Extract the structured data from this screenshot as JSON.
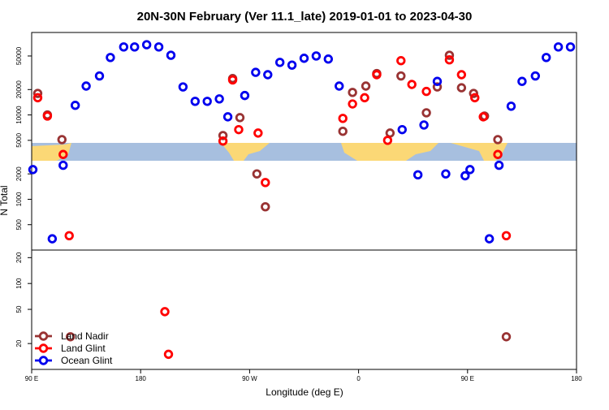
{
  "chart_data": {
    "type": "scatter",
    "title": "20N-30N February (Ver 11.1_late)   2019-01-01 to 2023-04-30",
    "x_label": "Longitude (deg E)",
    "y_label": "N Total",
    "xlim": [
      90,
      540
    ],
    "xticks": [
      {
        "value": 90,
        "label": "90 E"
      },
      180,
      {
        "value": 270,
        "label": "90 W"
      },
      {
        "value": 360,
        "label": "0"
      },
      {
        "value": 450,
        "label": "90 E"
      },
      {
        "value": 540,
        "label": "180"
      }
    ],
    "log_scale": true,
    "panels": [
      {
        "ylim": [
          250,
          95000
        ],
        "yticks": [
          500,
          1000,
          2000,
          5000,
          10000,
          20000,
          50000
        ]
      },
      {
        "ylim": [
          10,
          245
        ],
        "yticks": [
          20,
          50,
          100,
          200
        ]
      }
    ],
    "legend": "bottomleft",
    "series": [
      {
        "name": "Land Nadir",
        "color": "#993333",
        "x": [
          95,
          103,
          115,
          122,
          248,
          256,
          262,
          276,
          283,
          347,
          355,
          366,
          375,
          386,
          395,
          425,
          416,
          435,
          445,
          455,
          464,
          475,
          482
        ],
        "values": [
          18000,
          10000,
          5100,
          24,
          5700,
          27000,
          9300,
          2000,
          815,
          6400,
          18500,
          22000,
          31000,
          6100,
          29000,
          21500,
          10600,
          51000,
          21000,
          18000,
          9700,
          5100,
          24
        ]
      },
      {
        "name": "Land Glint",
        "color": "#ff0000",
        "x": [
          95,
          103,
          116,
          121,
          200,
          203,
          248,
          256,
          261,
          277,
          283,
          347,
          355,
          365,
          375,
          384,
          395,
          404,
          416,
          435,
          445,
          456,
          463,
          475,
          482
        ],
        "values": [
          16000,
          9700,
          3400,
          370,
          47,
          15,
          4900,
          26000,
          6700,
          6100,
          1580,
          9100,
          13500,
          16000,
          30000,
          5000,
          44000,
          23000,
          19000,
          45000,
          30000,
          16000,
          9500,
          3400,
          370
        ]
      },
      {
        "name": "Ocean Glint",
        "color": "#0000ee",
        "x": [
          91,
          107,
          116,
          126,
          135,
          146,
          155,
          166,
          175,
          185,
          195,
          205,
          215,
          225,
          235,
          245,
          252,
          266,
          275,
          285,
          295,
          305,
          315,
          325,
          335,
          344,
          396,
          409,
          414,
          425,
          432,
          448,
          452,
          476,
          468,
          486,
          495,
          506,
          515,
          525,
          535
        ],
        "values": [
          2250,
          340,
          2530,
          13000,
          22000,
          29000,
          48000,
          64000,
          64000,
          68000,
          64000,
          51000,
          21500,
          14500,
          14500,
          15500,
          9500,
          17000,
          32000,
          30000,
          42000,
          39000,
          47000,
          50000,
          46000,
          22000,
          6700,
          1950,
          7600,
          25000,
          2000,
          1900,
          2250,
          2530,
          340,
          12700,
          25000,
          29000,
          48000,
          64000,
          64000
        ]
      }
    ]
  }
}
